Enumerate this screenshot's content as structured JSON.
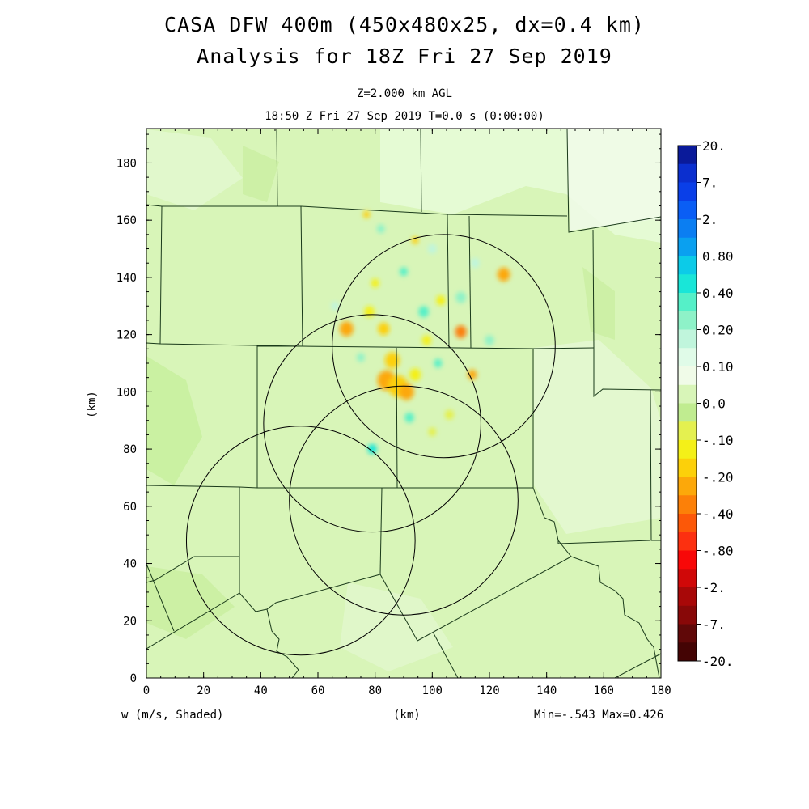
{
  "title_line1": "CASA DFW 400m (450x480x25, dx=0.4 km)",
  "title_line2": "Analysis for 18Z Fri 27 Sep 2019",
  "subtitle_level": "Z=2.000 km AGL",
  "subtitle_time": "18:50 Z Fri 27 Sep 2019    T=0.0 s (0:00:00)",
  "xlabel": "(km)",
  "ylabel": "(km)",
  "variable_label": "w (m/s, Shaded)",
  "min_max": "Min=-.543 Max=0.426",
  "x_ticks": [
    "0",
    "20",
    "40",
    "60",
    "80",
    "100",
    "120",
    "140",
    "160",
    "180"
  ],
  "y_ticks": [
    "0",
    "20",
    "40",
    "60",
    "80",
    "100",
    "120",
    "140",
    "160",
    "180"
  ],
  "xlim": [
    0,
    180
  ],
  "ylim": [
    0,
    192
  ],
  "colorbar": {
    "labels": [
      "20.",
      "7.",
      "2.",
      "0.80",
      "0.40",
      "0.20",
      "0.10",
      "0.0",
      "-.10",
      "-.20",
      "-.40",
      "-.80",
      "-2.",
      "-7.",
      "-20."
    ],
    "colors": [
      "#0a1a9a",
      "#0b2fcf",
      "#0a3fe8",
      "#0a5ef5",
      "#0b7ef2",
      "#0aa0f0",
      "#0ccbe8",
      "#19e6d8",
      "#55f0c8",
      "#8ef2c8",
      "#c0f5dc",
      "#e0fbe8",
      "#f0fbe8",
      "#d8f5b8",
      "#c0ec90",
      "#e4f050",
      "#f4f018",
      "#fcd00a",
      "#fca80a",
      "#fc8008",
      "#fc5808",
      "#fc3010",
      "#f80808",
      "#d00808",
      "#a80808",
      "#880808",
      "#600808",
      "#440404"
    ]
  },
  "radar_rings_km": [
    {
      "cx": 104,
      "cy": 116,
      "r": 39
    },
    {
      "cx": 79,
      "cy": 89,
      "r": 38
    },
    {
      "cx": 90,
      "cy": 62,
      "r": 40
    },
    {
      "cx": 54,
      "cy": 48,
      "r": 40
    }
  ],
  "w_cells_km": [
    {
      "x": 84,
      "y": 104,
      "c": "#fca80a",
      "r": 3.2
    },
    {
      "x": 88,
      "y": 102,
      "c": "#fcd00a",
      "r": 3.5
    },
    {
      "x": 91,
      "y": 100,
      "c": "#fca80a",
      "r": 2.6
    },
    {
      "x": 86,
      "y": 111,
      "c": "#fcd00a",
      "r": 2.6
    },
    {
      "x": 70,
      "y": 122,
      "c": "#fca80a",
      "r": 2.4
    },
    {
      "x": 83,
      "y": 122,
      "c": "#fcd00a",
      "r": 2.0
    },
    {
      "x": 110,
      "y": 121,
      "c": "#fc8008",
      "r": 2.0
    },
    {
      "x": 125,
      "y": 141,
      "c": "#fca80a",
      "r": 2.2
    },
    {
      "x": 114,
      "y": 106,
      "c": "#fca80a",
      "r": 1.6
    },
    {
      "x": 78,
      "y": 128,
      "c": "#f4f018",
      "r": 1.8
    },
    {
      "x": 94,
      "y": 106,
      "c": "#f4f018",
      "r": 2.0
    },
    {
      "x": 98,
      "y": 118,
      "c": "#f4f018",
      "r": 1.6
    },
    {
      "x": 103,
      "y": 132,
      "c": "#f4f018",
      "r": 1.6
    },
    {
      "x": 80,
      "y": 138,
      "c": "#f4f018",
      "r": 1.4
    },
    {
      "x": 94,
      "y": 153,
      "c": "#fcd00a",
      "r": 1.2
    },
    {
      "x": 77,
      "y": 162,
      "c": "#fcd00a",
      "r": 1.2
    },
    {
      "x": 106,
      "y": 92,
      "c": "#e4f050",
      "r": 1.6
    },
    {
      "x": 100,
      "y": 86,
      "c": "#e4f050",
      "r": 1.4
    },
    {
      "x": 79,
      "y": 80,
      "c": "#19e6d8",
      "r": 1.6
    },
    {
      "x": 92,
      "y": 91,
      "c": "#55f0c8",
      "r": 1.6
    },
    {
      "x": 97,
      "y": 128,
      "c": "#55f0c8",
      "r": 1.8
    },
    {
      "x": 90,
      "y": 142,
      "c": "#55f0c8",
      "r": 1.4
    },
    {
      "x": 110,
      "y": 133,
      "c": "#8ef2c8",
      "r": 1.8
    },
    {
      "x": 120,
      "y": 118,
      "c": "#8ef2c8",
      "r": 1.6
    },
    {
      "x": 82,
      "y": 157,
      "c": "#8ef2c8",
      "r": 1.4
    },
    {
      "x": 75,
      "y": 112,
      "c": "#8ef2c8",
      "r": 1.4
    },
    {
      "x": 102,
      "y": 110,
      "c": "#55f0c8",
      "r": 1.4
    },
    {
      "x": 115,
      "y": 145,
      "c": "#c0f5dc",
      "r": 1.6
    },
    {
      "x": 66,
      "y": 130,
      "c": "#c0f5dc",
      "r": 1.4
    },
    {
      "x": 100,
      "y": 150,
      "c": "#c0f5dc",
      "r": 1.6
    }
  ]
}
